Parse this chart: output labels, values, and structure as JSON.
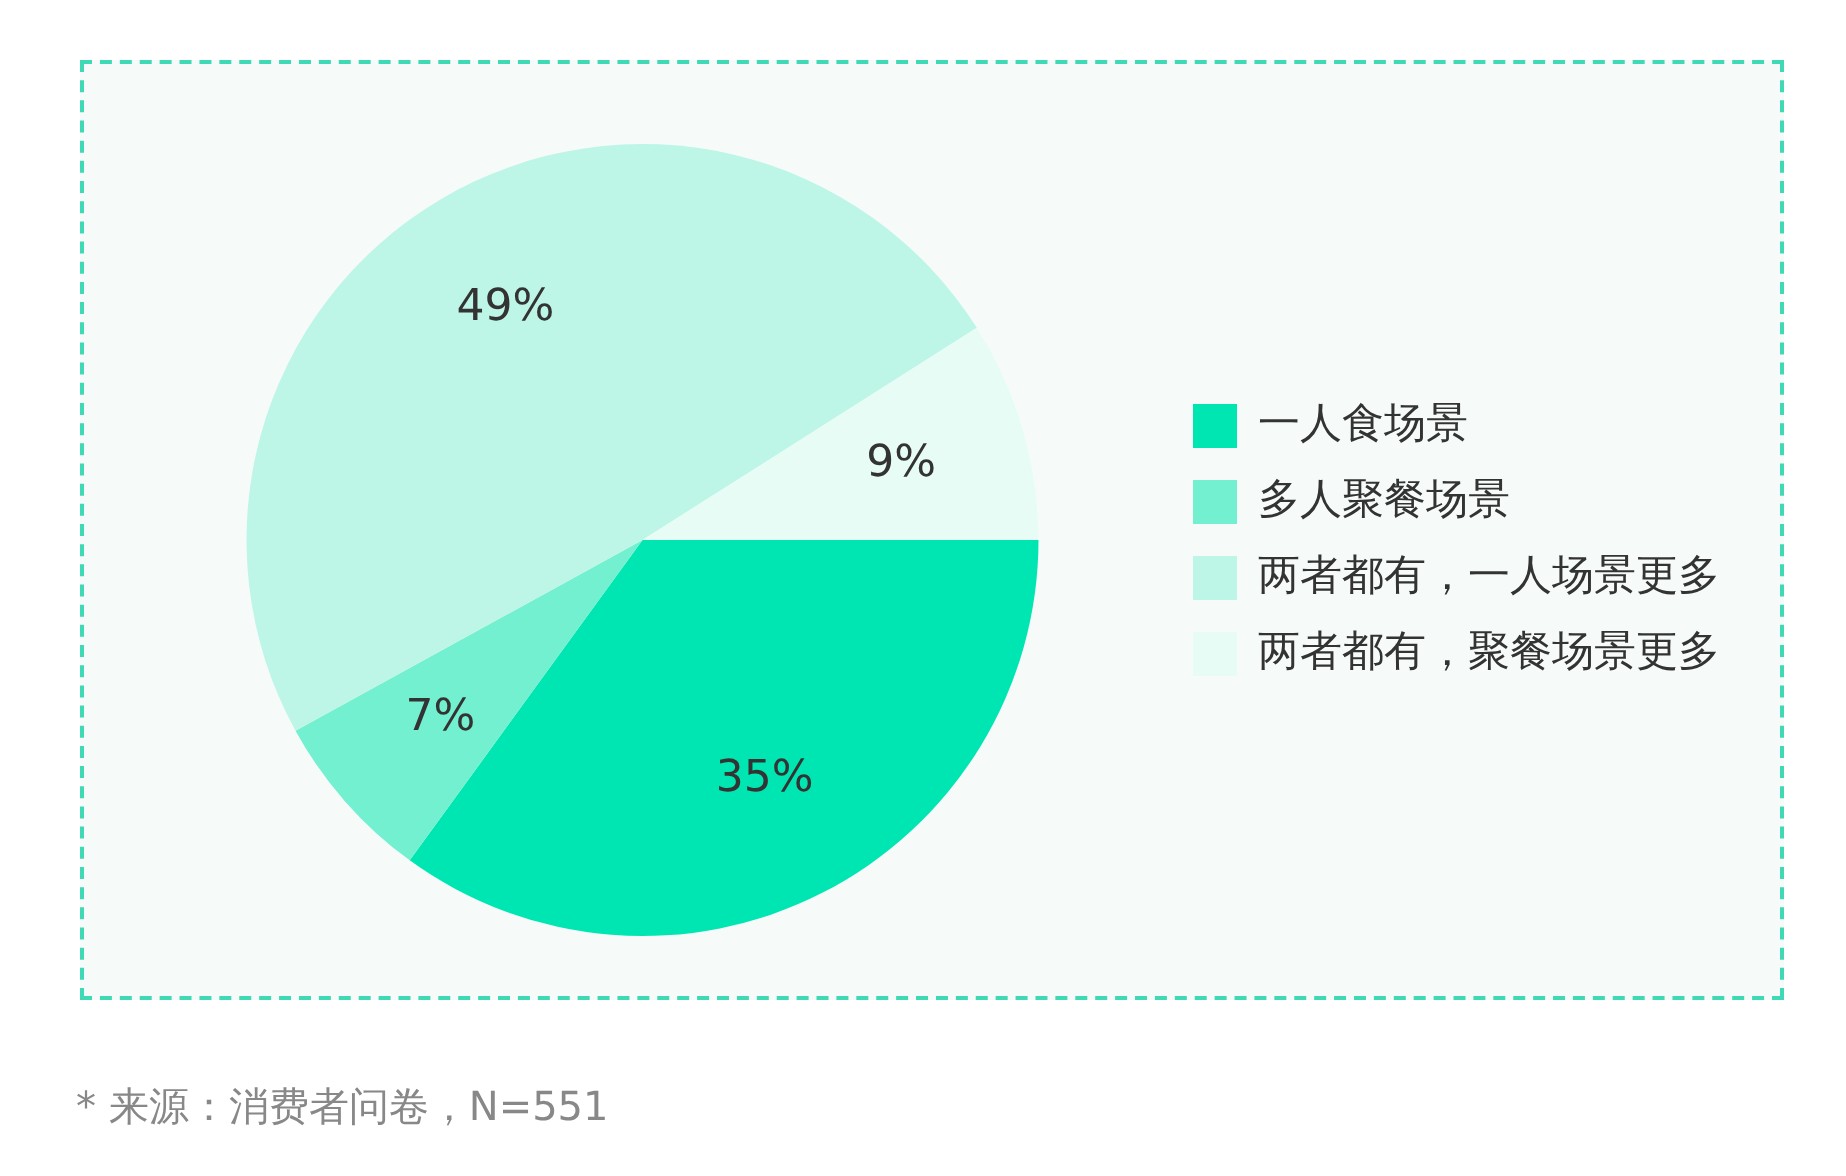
{
  "chart_data": {
    "type": "pie",
    "categories": [
      "一人食场景",
      "多人聚餐场景",
      "两者都有，一人场景更多",
      "两者都有，聚餐场景更多"
    ],
    "values": [
      35,
      7,
      49,
      9
    ],
    "colors": [
      "#00e6b2",
      "#72f0cf",
      "#bdf6e6",
      "#e8fcf6"
    ],
    "value_labels": [
      "35%",
      "7%",
      "49%",
      "9%"
    ],
    "legend": "right",
    "annotations": [
      "* 来源：消费者问卷，N=551"
    ]
  }
}
